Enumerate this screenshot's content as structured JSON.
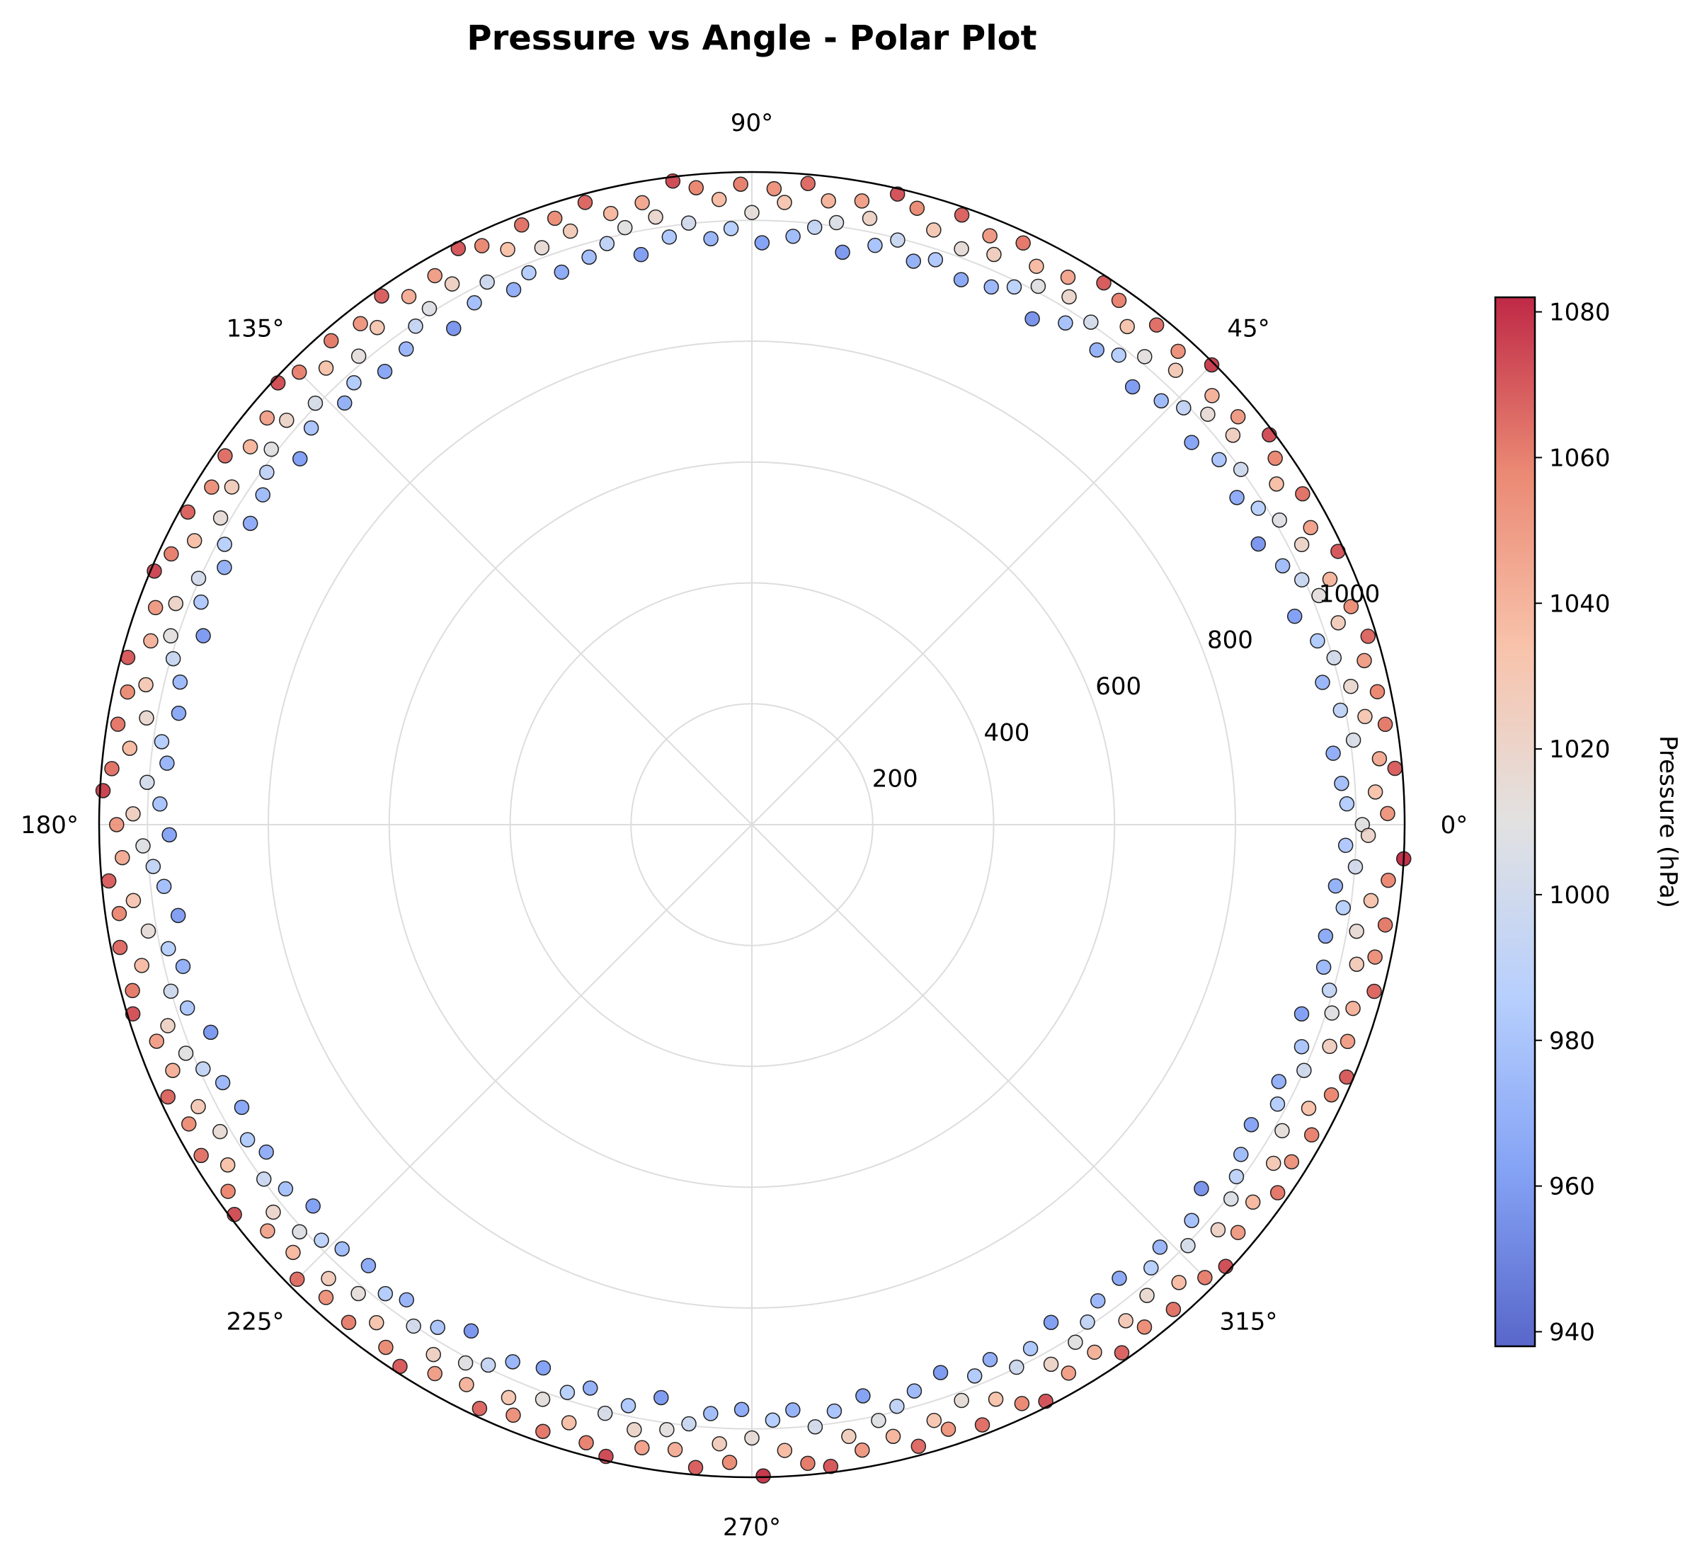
{
  "chart_data": {
    "type": "scatter",
    "projection": "polar",
    "title": "Pressure vs Angle - Polar Plot",
    "theta_ticks": [
      "0°",
      "45°",
      "90°",
      "135°",
      "180°",
      "225°",
      "270°",
      "315°"
    ],
    "theta_tick_values_deg": [
      0,
      45,
      90,
      135,
      180,
      225,
      270,
      315
    ],
    "r_ticks": [
      "200",
      "400",
      "600",
      "800",
      "1000"
    ],
    "r_tick_values": [
      200,
      400,
      600,
      800,
      1000
    ],
    "rlim": [
      0,
      1080
    ],
    "grid": true,
    "colorbar": {
      "label": "Pressure (hPa)",
      "colormap": "coolwarm",
      "range": [
        938,
        1082
      ],
      "ticks": [
        "940",
        "960",
        "980",
        "1000",
        "1020",
        "1040",
        "1060",
        "1080"
      ],
      "tick_values": [
        940,
        960,
        980,
        1000,
        1020,
        1040,
        1060,
        1080
      ],
      "colormap_stops": [
        "#3b4cc0",
        "#6f92f3",
        "#aac7fd",
        "#dddcdc",
        "#f7b89c",
        "#e7745b",
        "#b40426"
      ]
    },
    "color_encodes": "radius",
    "points_note_theta_deg_r": "Each point is [theta in degrees, r in hPa]; color equals r.",
    "points": [
      [
        0,
        1010
      ],
      [
        1,
        1052
      ],
      [
        2,
        985
      ],
      [
        3,
        1033
      ],
      [
        4,
        978
      ],
      [
        5,
        1068
      ],
      [
        6,
        1044
      ],
      [
        7,
        969
      ],
      [
        8,
        1005
      ],
      [
        9,
        1061
      ],
      [
        10,
        1030
      ],
      [
        11,
        992
      ],
      [
        12,
        1058
      ],
      [
        13,
        1017
      ],
      [
        14,
        973
      ],
      [
        15,
        1049
      ],
      [
        16,
        1002
      ],
      [
        17,
        1066
      ],
      [
        18,
        984
      ],
      [
        19,
        1026
      ],
      [
        20,
        1055
      ],
      [
        21,
        962
      ],
      [
        22,
        1012
      ],
      [
        23,
        1039
      ],
      [
        24,
        996
      ],
      [
        25,
        1070
      ],
      [
        26,
        977
      ],
      [
        27,
        1021
      ],
      [
        28,
        1047
      ],
      [
        29,
        958
      ],
      [
        30,
        1008
      ],
      [
        31,
        1063
      ],
      [
        32,
        988
      ],
      [
        33,
        1035
      ],
      [
        34,
        968
      ],
      [
        35,
        1057
      ],
      [
        36,
        1000
      ],
      [
        37,
        1072
      ],
      [
        38,
        981
      ],
      [
        39,
        1024
      ],
      [
        40,
        1050
      ],
      [
        41,
        964
      ],
      [
        42,
        1015
      ],
      [
        43,
        1041
      ],
      [
        44,
        993
      ],
      [
        45,
        1076
      ],
      [
        46,
        975
      ],
      [
        47,
        1028
      ],
      [
        48,
        1054
      ],
      [
        49,
        960
      ],
      [
        50,
        1011
      ],
      [
        51,
        1064
      ],
      [
        52,
        986
      ],
      [
        53,
        1032
      ],
      [
        54,
        971
      ],
      [
        55,
        1059
      ],
      [
        56,
        1003
      ],
      [
        57,
        1069
      ],
      [
        58,
        979
      ],
      [
        59,
        1019
      ],
      [
        60,
        1046
      ],
      [
        61,
        957
      ],
      [
        62,
        1009
      ],
      [
        63,
        1037
      ],
      [
        64,
        990
      ],
      [
        65,
        1062
      ],
      [
        66,
        974
      ],
      [
        67,
        1025
      ],
      [
        68,
        1051
      ],
      [
        69,
        966
      ],
      [
        70,
        1014
      ],
      [
        71,
        1067
      ],
      [
        72,
        983
      ],
      [
        73,
        1029
      ],
      [
        74,
        970
      ],
      [
        75,
        1056
      ],
      [
        76,
        997
      ],
      [
        77,
        1071
      ],
      [
        78,
        980
      ],
      [
        79,
        1022
      ],
      [
        80,
        1048
      ],
      [
        81,
        959
      ],
      [
        82,
        1006
      ],
      [
        83,
        1040
      ],
      [
        84,
        994
      ],
      [
        85,
        1065
      ],
      [
        86,
        976
      ],
      [
        87,
        1031
      ],
      [
        88,
        1053
      ],
      [
        89,
        963
      ],
      [
        90,
        1013
      ],
      [
        91,
        1060
      ],
      [
        92,
        987
      ],
      [
        93,
        1036
      ],
      [
        94,
        972
      ],
      [
        95,
        1058
      ],
      [
        96,
        1001
      ],
      [
        97,
        1073
      ],
      [
        98,
        982
      ],
      [
        99,
        1018
      ],
      [
        100,
        1045
      ],
      [
        101,
        961
      ],
      [
        102,
        1010
      ],
      [
        103,
        1038
      ],
      [
        104,
        991
      ],
      [
        105,
        1066
      ],
      [
        106,
        977
      ],
      [
        107,
        1027
      ],
      [
        108,
        1055
      ],
      [
        109,
        967
      ],
      [
        110,
        1016
      ],
      [
        111,
        1063
      ],
      [
        112,
        985
      ],
      [
        113,
        1034
      ],
      [
        114,
        969
      ],
      [
        115,
        1057
      ],
      [
        116,
        999
      ],
      [
        117,
        1070
      ],
      [
        118,
        978
      ],
      [
        119,
        1023
      ],
      [
        120,
        1049
      ],
      [
        121,
        958
      ],
      [
        122,
        1007
      ],
      [
        123,
        1042
      ],
      [
        124,
        995
      ],
      [
        125,
        1068
      ],
      [
        126,
        973
      ],
      [
        127,
        1030
      ],
      [
        128,
        1052
      ],
      [
        129,
        965
      ],
      [
        130,
        1012
      ],
      [
        131,
        1061
      ],
      [
        132,
        984
      ],
      [
        133,
        1033
      ],
      [
        134,
        970
      ],
      [
        135,
        1059
      ],
      [
        136,
        1004
      ],
      [
        137,
        1072
      ],
      [
        138,
        981
      ],
      [
        139,
        1020
      ],
      [
        140,
        1047
      ],
      [
        141,
        962
      ],
      [
        142,
        1009
      ],
      [
        143,
        1039
      ],
      [
        144,
        992
      ],
      [
        145,
        1064
      ],
      [
        146,
        976
      ],
      [
        147,
        1026
      ],
      [
        148,
        1054
      ],
      [
        149,
        968
      ],
      [
        150,
        1015
      ],
      [
        151,
        1067
      ],
      [
        152,
        988
      ],
      [
        153,
        1035
      ],
      [
        154,
        971
      ],
      [
        155,
        1060
      ],
      [
        156,
        1002
      ],
      [
        157,
        1074
      ],
      [
        158,
        983
      ],
      [
        159,
        1021
      ],
      [
        160,
        1050
      ],
      [
        161,
        960
      ],
      [
        162,
        1011
      ],
      [
        163,
        1040
      ],
      [
        164,
        996
      ],
      [
        165,
        1069
      ],
      [
        166,
        975
      ],
      [
        167,
        1029
      ],
      [
        168,
        1056
      ],
      [
        169,
        966
      ],
      [
        170,
        1017
      ],
      [
        171,
        1062
      ],
      [
        172,
        986
      ],
      [
        173,
        1037
      ],
      [
        174,
        973
      ],
      [
        175,
        1063
      ],
      [
        176,
        1003
      ],
      [
        177,
        1075
      ],
      [
        178,
        980
      ],
      [
        179,
        1024
      ],
      [
        180,
        1051
      ],
      [
        181,
        964
      ],
      [
        182,
        1008
      ],
      [
        183,
        1043
      ],
      [
        184,
        993
      ],
      [
        185,
        1068
      ],
      [
        186,
        978
      ],
      [
        187,
        1031
      ],
      [
        188,
        1057
      ],
      [
        189,
        961
      ],
      [
        190,
        1014
      ],
      [
        191,
        1065
      ],
      [
        192,
        987
      ],
      [
        193,
        1036
      ],
      [
        194,
        970
      ],
      [
        195,
        1061
      ],
      [
        196,
        1000
      ],
      [
        197,
        1071
      ],
      [
        198,
        982
      ],
      [
        199,
        1022
      ],
      [
        200,
        1048
      ],
      [
        201,
        959
      ],
      [
        202,
        1010
      ],
      [
        203,
        1041
      ],
      [
        204,
        994
      ],
      [
        205,
        1066
      ],
      [
        206,
        974
      ],
      [
        207,
        1028
      ],
      [
        208,
        1055
      ],
      [
        209,
        965
      ],
      [
        210,
        1016
      ],
      [
        211,
        1063
      ],
      [
        212,
        984
      ],
      [
        213,
        1034
      ],
      [
        214,
        969
      ],
      [
        215,
        1058
      ],
      [
        216,
        998
      ],
      [
        217,
        1072
      ],
      [
        218,
        979
      ],
      [
        219,
        1019
      ],
      [
        220,
        1046
      ],
      [
        221,
        962
      ],
      [
        222,
        1007
      ],
      [
        223,
        1038
      ],
      [
        224,
        990
      ],
      [
        225,
        1064
      ],
      [
        226,
        976
      ],
      [
        227,
        1027
      ],
      [
        228,
        1053
      ],
      [
        229,
        967
      ],
      [
        230,
        1013
      ],
      [
        231,
        1060
      ],
      [
        232,
        985
      ],
      [
        233,
        1032
      ],
      [
        234,
        972
      ],
      [
        235,
        1056
      ],
      [
        236,
        1001
      ],
      [
        237,
        1069
      ],
      [
        238,
        981
      ],
      [
        239,
        1023
      ],
      [
        240,
        1049
      ],
      [
        241,
        958
      ],
      [
        242,
        1009
      ],
      [
        243,
        1040
      ],
      [
        244,
        995
      ],
      [
        245,
        1066
      ],
      [
        246,
        973
      ],
      [
        247,
        1030
      ],
      [
        248,
        1054
      ],
      [
        249,
        963
      ],
      [
        250,
        1012
      ],
      [
        251,
        1062
      ],
      [
        252,
        988
      ],
      [
        253,
        1035
      ],
      [
        254,
        970
      ],
      [
        255,
        1059
      ],
      [
        256,
        1004
      ],
      [
        257,
        1073
      ],
      [
        258,
        983
      ],
      [
        259,
        1020
      ],
      [
        260,
        1047
      ],
      [
        261,
        960
      ],
      [
        262,
        1011
      ],
      [
        263,
        1042
      ],
      [
        264,
        997
      ],
      [
        265,
        1068
      ],
      [
        266,
        977
      ],
      [
        267,
        1026
      ],
      [
        268,
        1056
      ],
      [
        269,
        968
      ],
      [
        270,
        1015
      ],
      [
        271,
        1078
      ],
      [
        272,
        986
      ],
      [
        273,
        1037
      ],
      [
        274,
        971
      ],
      [
        275,
        1061
      ],
      [
        276,
        1002
      ],
      [
        277,
        1070
      ],
      [
        278,
        980
      ],
      [
        279,
        1025
      ],
      [
        280,
        1051
      ],
      [
        281,
        963
      ],
      [
        282,
        1008
      ],
      [
        283,
        1039
      ],
      [
        284,
        992
      ],
      [
        285,
        1065
      ],
      [
        286,
        975
      ],
      [
        287,
        1031
      ],
      [
        288,
        1052
      ],
      [
        289,
        959
      ],
      [
        290,
        1014
      ],
      [
        291,
        1064
      ],
      [
        292,
        984
      ],
      [
        293,
        1033
      ],
      [
        294,
        969
      ],
      [
        295,
        1057
      ],
      [
        296,
        999
      ],
      [
        297,
        1071
      ],
      [
        298,
        982
      ],
      [
        299,
        1021
      ],
      [
        300,
        1048
      ],
      [
        301,
        961
      ],
      [
        302,
        1010
      ],
      [
        303,
        1041
      ],
      [
        304,
        993
      ],
      [
        305,
        1067
      ],
      [
        306,
        974
      ],
      [
        307,
        1028
      ],
      [
        308,
        1055
      ],
      [
        309,
        966
      ],
      [
        310,
        1017
      ],
      [
        311,
        1063
      ],
      [
        312,
        987
      ],
      [
        313,
        1036
      ],
      [
        314,
        972
      ],
      [
        315,
        1060
      ],
      [
        316,
        1003
      ],
      [
        317,
        1072
      ],
      [
        318,
        979
      ],
      [
        319,
        1022
      ],
      [
        320,
        1050
      ],
      [
        321,
        957
      ],
      [
        322,
        1006
      ],
      [
        323,
        1038
      ],
      [
        324,
        991
      ],
      [
        325,
        1062
      ],
      [
        326,
        976
      ],
      [
        327,
        1029
      ],
      [
        328,
        1053
      ],
      [
        329,
        964
      ],
      [
        330,
        1013
      ],
      [
        331,
        1059
      ],
      [
        332,
        985
      ],
      [
        333,
        1034
      ],
      [
        334,
        970
      ],
      [
        335,
        1058
      ],
      [
        336,
        1000
      ],
      [
        337,
        1069
      ],
      [
        338,
        981
      ],
      [
        339,
        1024
      ],
      [
        340,
        1049
      ],
      [
        341,
        962
      ],
      [
        342,
        1009
      ],
      [
        343,
        1040
      ],
      [
        344,
        994
      ],
      [
        345,
        1066
      ],
      [
        346,
        975
      ],
      [
        347,
        1027
      ],
      [
        348,
        1054
      ],
      [
        349,
        967
      ],
      [
        350,
        1016
      ],
      [
        351,
        1061
      ],
      [
        352,
        988
      ],
      [
        353,
        1032
      ],
      [
        354,
        971
      ],
      [
        355,
        1057
      ],
      [
        356,
        1001
      ],
      [
        357,
        1080
      ],
      [
        358,
        983
      ],
      [
        359,
        1020
      ]
    ]
  }
}
